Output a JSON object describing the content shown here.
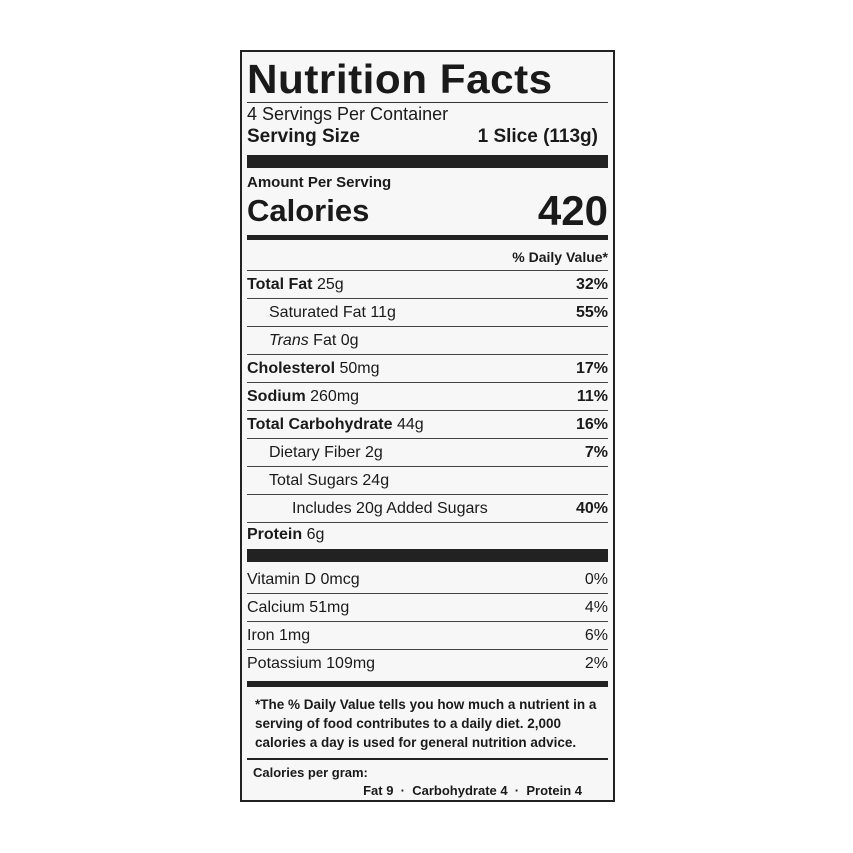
{
  "title": "Nutrition Facts",
  "servings": "4 Servings Per Container",
  "serving_size_label": "Serving Size",
  "serving_size_value": "1 Slice (113g)",
  "amount_per_serving": "Amount Per Serving",
  "calories_label": "Calories",
  "calories_value": "420",
  "dv_header": "% Daily Value*",
  "nutrients": [
    {
      "name": "Total Fat",
      "amount": "25g",
      "dv": "32%"
    },
    {
      "name": "Saturated Fat",
      "amount": "11g",
      "dv": "55%"
    },
    {
      "name": "Trans",
      "name2": "Fat",
      "amount": "0g",
      "dv": ""
    },
    {
      "name": "Cholesterol",
      "amount": "50mg",
      "dv": "17%"
    },
    {
      "name": "Sodium",
      "amount": "260mg",
      "dv": "11%"
    },
    {
      "name": "Total Carbohydrate",
      "amount": "44g",
      "dv": "16%"
    },
    {
      "name": "Dietary Fiber",
      "amount": "2g",
      "dv": "7%"
    },
    {
      "name": "Total Sugars",
      "amount": "24g",
      "dv": ""
    },
    {
      "name": "Includes 20g Added Sugars",
      "amount": "",
      "dv": "40%"
    },
    {
      "name": "Protein",
      "amount": "6g",
      "dv": ""
    }
  ],
  "vitamins": [
    {
      "name": "Vitamin D 0mcg",
      "dv": "0%"
    },
    {
      "name": "Calcium 51mg",
      "dv": "4%"
    },
    {
      "name": "Iron 1mg",
      "dv": "6%"
    },
    {
      "name": "Potassium 109mg",
      "dv": "2%"
    }
  ],
  "footnote": "*The % Daily Value tells you how much a nutrient in a serving of food contributes to a daily diet. 2,000 calories a day is used for general nutrition advice.",
  "calories_per_gram_label": "Calories per gram:",
  "calories_per_gram": "Fat 9  ·  Carbohydrate 4  ·  Protein 4"
}
